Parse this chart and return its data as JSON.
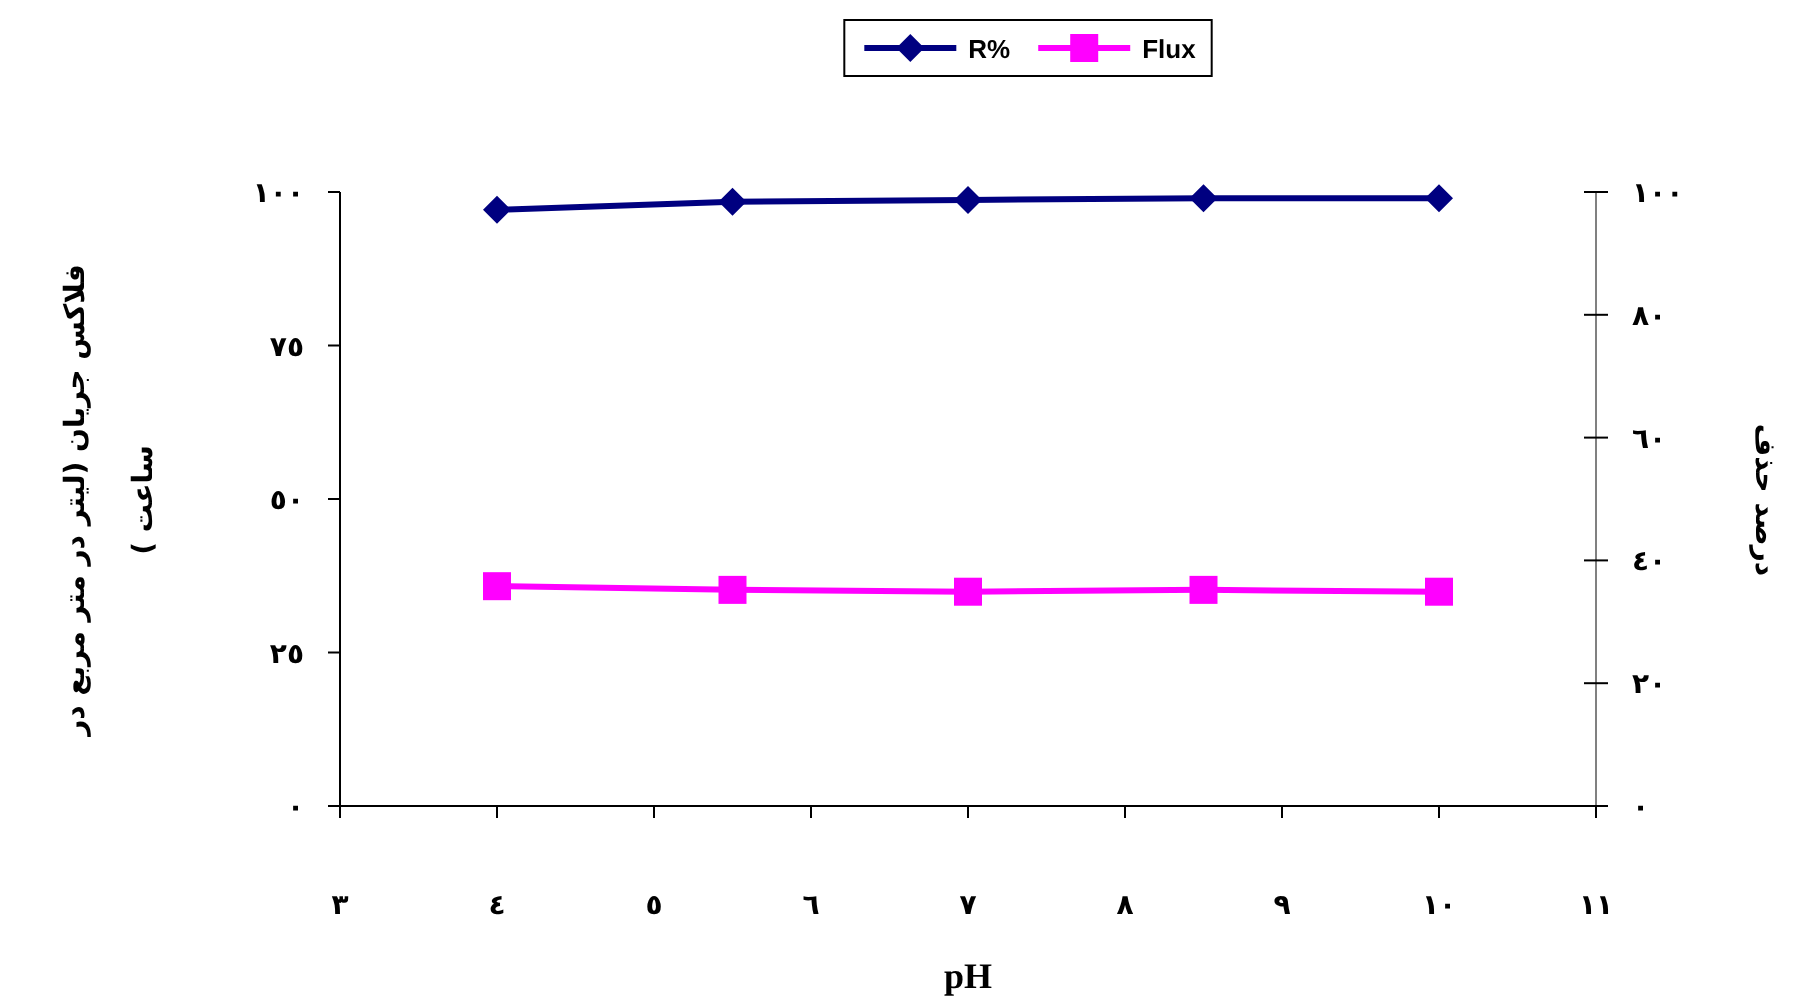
{
  "chart_data": {
    "type": "line",
    "xlabel": "pH",
    "ylabel": "فلاکس جریان (لیتر در متر مربع در ساعت )",
    "y2label": "درصد حذف",
    "x": [
      4,
      5.5,
      7,
      8.5,
      10
    ],
    "xlim": [
      3,
      11
    ],
    "xticks": [
      {
        "value": 3,
        "label": "٣"
      },
      {
        "value": 4,
        "label": "٤"
      },
      {
        "value": 5,
        "label": "٥"
      },
      {
        "value": 6,
        "label": "٦"
      },
      {
        "value": 7,
        "label": "٧"
      },
      {
        "value": 8,
        "label": "٨"
      },
      {
        "value": 9,
        "label": "٩"
      },
      {
        "value": 10,
        "label": "١٠"
      },
      {
        "value": 11,
        "label": "١١"
      }
    ],
    "ylim": [
      0,
      100
    ],
    "yticks": [
      {
        "value": 0,
        "label": "٠"
      },
      {
        "value": 25,
        "label": "٢٥"
      },
      {
        "value": 50,
        "label": "٥٠"
      },
      {
        "value": 75,
        "label": "٧٥"
      },
      {
        "value": 100,
        "label": "١٠٠"
      }
    ],
    "y2lim": [
      0,
      100
    ],
    "y2ticks": [
      {
        "value": 0,
        "label": "٠"
      },
      {
        "value": 20,
        "label": "٢٠"
      },
      {
        "value": 40,
        "label": "٤٠"
      },
      {
        "value": 60,
        "label": "٦٠"
      },
      {
        "value": 80,
        "label": "٨٠"
      },
      {
        "value": 100,
        "label": "١٠٠"
      }
    ],
    "series": [
      {
        "name": "R%",
        "color": "#000080",
        "marker": "diamond",
        "values": [
          97.1,
          98.4,
          98.7,
          99.0,
          99.0
        ]
      },
      {
        "name": "Flux",
        "color": "#ff00ff",
        "marker": "square",
        "values": [
          35.8,
          35.2,
          34.9,
          35.2,
          34.9
        ]
      }
    ],
    "legend": "top",
    "grid": false,
    "line_style": "solid"
  }
}
